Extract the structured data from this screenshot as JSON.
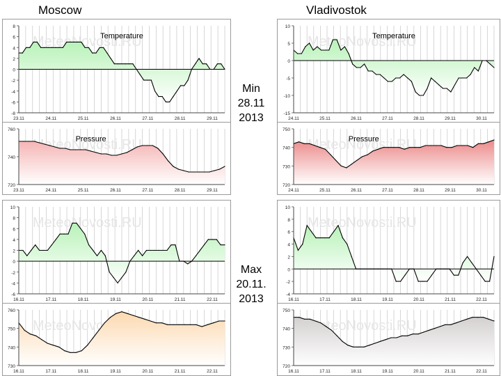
{
  "page": {
    "city_left": "Moscow",
    "city_right": "Vladivostok",
    "min_label": [
      "Min",
      "28.11",
      "2013"
    ],
    "max_label": [
      "Max",
      "20.11.",
      "2013"
    ]
  },
  "colors": {
    "temp_fill": "#b8f2b8",
    "pressure_pink": "#f5b5b5",
    "pressure_red": "#ec8a8a",
    "pressure_orange": "#fcd9b0",
    "pressure_gray": "#d4d0d0",
    "line": "#000000",
    "grid": "#cccccc",
    "watermark": "#e6e6e6"
  },
  "chart_data": [
    {
      "id": "moscow_min_temp",
      "type": "area",
      "title": "Temperature",
      "watermark": "MeteoNovosti.RU",
      "ylim": [
        -8,
        8
      ],
      "yticks": [
        "8",
        "6",
        "4",
        "2",
        "0",
        "-2",
        "-4",
        "-6",
        "-8"
      ],
      "xticks": [
        "23.11",
        "24.11",
        "25.11",
        "26.11",
        "27.11",
        "28.11",
        "29.11"
      ],
      "fill": "temp_fill",
      "baseline": 0,
      "values": [
        3,
        3,
        4,
        4,
        5,
        5,
        4,
        4,
        4,
        4,
        4,
        4,
        4,
        5,
        5,
        5,
        5,
        5,
        4,
        4,
        3,
        3,
        4,
        4,
        3,
        2,
        1,
        1,
        1,
        1,
        1,
        1,
        0,
        -1,
        -2,
        -2,
        -2,
        -4,
        -5,
        -5,
        -6,
        -6,
        -5,
        -4,
        -3,
        -3,
        -2,
        0,
        1,
        2,
        1,
        1,
        0,
        0,
        1,
        1,
        0
      ]
    },
    {
      "id": "moscow_min_pressure",
      "type": "area",
      "title": "Pressure",
      "watermark": "MeteoNovosti.RU",
      "ylim": [
        720,
        760
      ],
      "yticks": [
        "760",
        "740",
        "720"
      ],
      "xticks": [
        "23.11",
        "24.11",
        "25.11",
        "26.11",
        "27.11",
        "28.11",
        "29.11"
      ],
      "fill": "pressure_pink",
      "baseline": 720,
      "values": [
        751,
        751,
        751,
        751,
        750,
        749,
        748,
        747,
        746,
        746,
        745,
        745,
        745,
        745,
        744,
        743,
        742,
        742,
        741,
        741,
        742,
        743,
        745,
        747,
        748,
        748,
        748,
        746,
        742,
        737,
        733,
        731,
        730,
        729,
        729,
        729,
        729,
        729,
        730,
        731,
        733
      ]
    },
    {
      "id": "vladivostok_min_temp",
      "type": "area",
      "title": "Temperature",
      "watermark": "MeteoNovosti.RU",
      "ylim": [
        -15,
        10
      ],
      "yticks": [
        "10",
        "5",
        "0",
        "-5",
        "-10",
        "-15"
      ],
      "xticks": [
        "24.11",
        "25.11",
        "26.11",
        "27.11",
        "28.11",
        "29.11",
        "30.11"
      ],
      "fill": "temp_fill",
      "baseline": 0,
      "values": [
        3,
        2,
        2,
        4,
        5,
        3,
        4,
        3,
        3,
        3,
        6,
        6,
        3,
        4,
        2,
        -1,
        -2,
        -2,
        -1,
        -3,
        -3,
        -4,
        -4,
        -5,
        -6,
        -6,
        -5,
        -5,
        -4,
        -5,
        -6,
        -9,
        -10,
        -10,
        -8,
        -5,
        -6,
        -7,
        -8,
        -8,
        -9,
        -7,
        -5,
        -5,
        -5,
        -4,
        -2,
        -3,
        0,
        0,
        -1,
        -2
      ]
    },
    {
      "id": "vladivostok_min_pressure",
      "type": "area",
      "title": "Pressure",
      "watermark": "MeteoNovosti.RU",
      "ylim": [
        720,
        750
      ],
      "yticks": [
        "750",
        "740",
        "730",
        "720"
      ],
      "xticks": [
        "24.11",
        "25.11",
        "26.11",
        "27.11",
        "28.11",
        "29.11",
        "30.11"
      ],
      "fill": "pressure_red",
      "baseline": 720,
      "values": [
        742,
        743,
        742,
        742,
        741,
        740,
        739,
        736,
        733,
        730,
        729,
        731,
        733,
        735,
        736,
        738,
        739,
        740,
        740,
        740,
        740,
        739,
        740,
        740,
        740,
        741,
        741,
        741,
        741,
        740,
        740,
        741,
        741,
        741,
        740,
        742,
        742,
        743,
        744
      ]
    },
    {
      "id": "moscow_max_temp",
      "type": "area",
      "title": "",
      "watermark": "MeteoNovosti.RU",
      "ylim": [
        -6,
        10
      ],
      "yticks": [
        "10",
        "8",
        "6",
        "4",
        "2",
        "0",
        "-2",
        "-4",
        "-6"
      ],
      "xticks": [
        "16.11",
        "17.11",
        "18.11",
        "19.11",
        "20.11",
        "21.11",
        "22.11"
      ],
      "fill": "temp_fill",
      "baseline": 0,
      "values": [
        2,
        2,
        1,
        2,
        3,
        2,
        2,
        2,
        3,
        4,
        5,
        5,
        5,
        7,
        7,
        6,
        5,
        3,
        2,
        1,
        2,
        1,
        -2,
        -3,
        -4,
        -3,
        -2,
        0,
        1,
        2,
        1,
        2,
        2,
        2,
        2,
        2,
        2,
        3,
        3,
        0,
        0,
        -0.5,
        0,
        1,
        2,
        3,
        4,
        4,
        4,
        3,
        3
      ]
    },
    {
      "id": "moscow_max_pressure",
      "type": "area",
      "title": "",
      "watermark": "MeteoNovosti.RU",
      "ylim": [
        730,
        760
      ],
      "yticks": [
        "760",
        "750",
        "740",
        "730"
      ],
      "xticks": [
        "16.11",
        "17.11",
        "18.11",
        "19.11",
        "20.11",
        "21.11",
        "22.11"
      ],
      "fill": "pressure_orange",
      "baseline": 730,
      "values": [
        753,
        749,
        747,
        746,
        744,
        742,
        741,
        740,
        738,
        737,
        737,
        738,
        741,
        745,
        749,
        753,
        756,
        758,
        759,
        758,
        757,
        756,
        755,
        754,
        753,
        753,
        752,
        752,
        752,
        752,
        752,
        752,
        751,
        752,
        753,
        754,
        754
      ]
    },
    {
      "id": "vladivostok_max_temp",
      "type": "area",
      "title": "",
      "watermark": "MeteoNovosti.RU",
      "ylim": [
        -4,
        10
      ],
      "yticks": [
        "10",
        "8",
        "6",
        "4",
        "2",
        "0",
        "-2",
        "-4"
      ],
      "xticks": [
        "16.11",
        "17.11",
        "18.11",
        "19.11",
        "20.11",
        "21.11",
        "22.11"
      ],
      "fill": "temp_fill",
      "baseline": 0,
      "values": [
        5,
        3,
        4,
        7,
        6,
        5,
        5,
        5,
        5,
        6,
        7,
        5,
        4,
        2,
        0,
        0,
        0,
        0,
        0,
        0,
        0,
        0,
        0,
        -2,
        -2,
        -1,
        0,
        0,
        -2,
        -2,
        -2,
        -1,
        0,
        0,
        0,
        0,
        -1,
        -1,
        1,
        2,
        1,
        0,
        -1,
        -2,
        -2,
        2
      ]
    },
    {
      "id": "vladivostok_max_pressure",
      "type": "area",
      "title": "",
      "watermark": "MeteoNovosti.RU",
      "ylim": [
        720,
        750
      ],
      "yticks": [
        "750",
        "740",
        "730",
        "720"
      ],
      "xticks": [
        "16.11",
        "17.11",
        "18.11",
        "19.11",
        "20.11",
        "21.11",
        "22.11"
      ],
      "fill": "pressure_gray",
      "baseline": 720,
      "values": [
        746,
        746,
        745,
        745,
        744,
        743,
        741,
        739,
        736,
        733,
        731,
        730,
        730,
        730,
        731,
        732,
        733,
        734,
        735,
        735,
        736,
        736,
        737,
        737,
        738,
        739,
        740,
        741,
        742,
        742,
        743,
        744,
        745,
        746,
        746,
        746,
        745,
        744
      ]
    }
  ]
}
